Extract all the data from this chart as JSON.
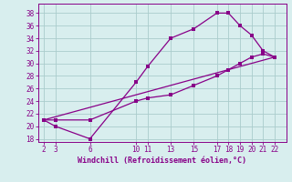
{
  "xlabel": "Windchill (Refroidissement éolien,°C)",
  "background_color": "#d8eeee",
  "line_color": "#880088",
  "grid_color": "#aacccc",
  "yticks": [
    18,
    20,
    22,
    24,
    26,
    28,
    30,
    32,
    34,
    36,
    38
  ],
  "xticks": [
    2,
    3,
    6,
    10,
    11,
    13,
    15,
    17,
    18,
    19,
    20,
    21,
    22
  ],
  "line1_x": [
    2,
    3,
    6,
    10,
    11,
    13,
    15,
    17,
    18,
    19,
    20,
    21,
    22
  ],
  "line1_y": [
    21,
    20,
    18,
    27,
    29.5,
    34,
    35.5,
    38,
    38,
    36,
    34.5,
    32,
    31
  ],
  "line2_x": [
    2,
    3,
    6,
    10,
    11,
    13,
    15,
    17,
    18,
    19,
    20,
    21,
    22
  ],
  "line2_y": [
    21,
    21,
    21,
    24,
    24.5,
    25,
    26.5,
    28,
    29,
    30,
    31,
    31.5,
    31
  ],
  "line3_x": [
    2,
    22
  ],
  "line3_y": [
    21,
    31
  ],
  "xlim": [
    1.5,
    23.0
  ],
  "ylim": [
    17.5,
    39.5
  ]
}
